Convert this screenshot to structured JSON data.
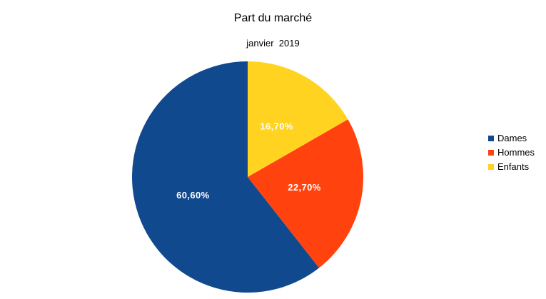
{
  "title": "Part du marché",
  "subtitle": "janvier  2019",
  "legend": {
    "position": "right",
    "items": [
      {
        "label": "Dames",
        "color": "#11498E"
      },
      {
        "label": "Hommes",
        "color": "#FF420E"
      },
      {
        "label": "Enfants",
        "color": "#FFD320"
      }
    ]
  },
  "chart_data": {
    "type": "pie",
    "title": "Part du marché",
    "subtitle": "janvier  2019",
    "categories": [
      "Dames",
      "Hommes",
      "Enfants"
    ],
    "values": [
      60.6,
      22.7,
      16.7
    ],
    "labels": [
      "60,60%",
      "22,70%",
      "16,70%"
    ],
    "colors": [
      "#11498E",
      "#FF420E",
      "#FFD320"
    ],
    "label_color": "#FFFFFF",
    "background": "#FFFFFF",
    "start_angle_deg": 0,
    "direction": "counterclockwise",
    "label_radius_ratio": 0.5,
    "legend_position": "right",
    "grid": false
  }
}
